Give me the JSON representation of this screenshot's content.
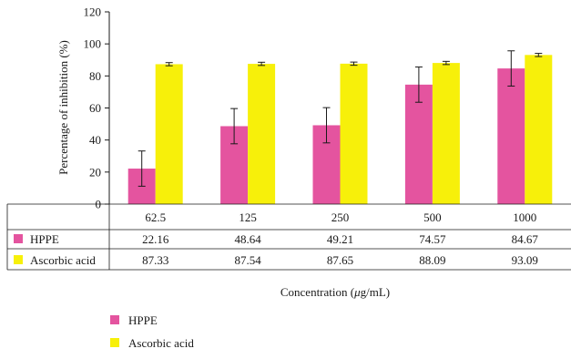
{
  "chart_data": {
    "type": "bar",
    "categories": [
      "62.5",
      "125",
      "250",
      "500",
      "1000"
    ],
    "series": [
      {
        "name": "HPPE",
        "color": "#e4549f",
        "values": [
          22.16,
          48.64,
          49.21,
          74.57,
          84.67
        ],
        "error": [
          11,
          11,
          11,
          11,
          11
        ]
      },
      {
        "name": "Ascorbic acid",
        "color": "#f7f00a",
        "values": [
          87.33,
          87.54,
          87.65,
          88.09,
          93.09
        ],
        "error": [
          1,
          1,
          1,
          1,
          1
        ]
      }
    ],
    "value_labels": [
      [
        "22.16",
        "48.64",
        "49.21",
        "74.57",
        "84.67"
      ],
      [
        "87.33",
        "87.54",
        "87.65",
        "88.09",
        "93.09"
      ]
    ],
    "ylabel": "Percentage of inhibition (%)",
    "xlabel": "Concentration (μg/mL)",
    "xlabel_parts": {
      "prefix": "Concentration (",
      "unit_mu": "μ",
      "suffix": "g/mL)"
    },
    "ylim": [
      0,
      120
    ],
    "yticks": [
      "0",
      "20",
      "40",
      "60",
      "80",
      "100",
      "120"
    ],
    "grid": false,
    "legend": "bottom-left",
    "data_table": true
  }
}
